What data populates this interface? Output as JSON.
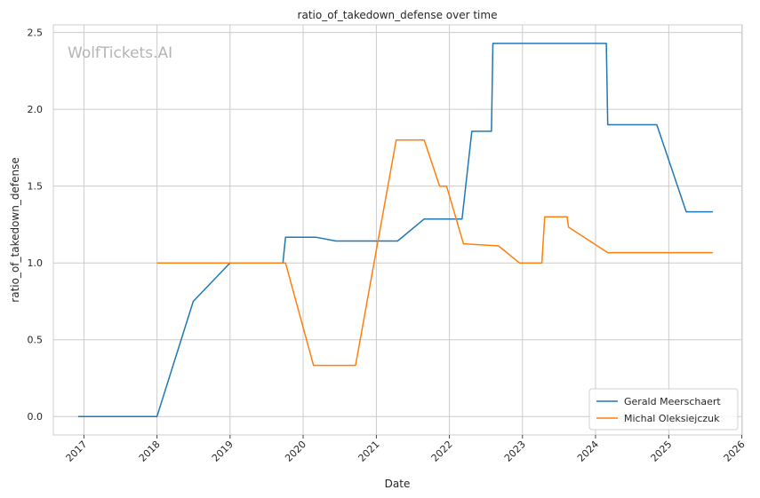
{
  "chart_data": {
    "type": "line",
    "title": "ratio_of_takedown_defense over time",
    "xlabel": "Date",
    "ylabel": "ratio_of_takedown_defense",
    "watermark": "WolfTickets.AI",
    "xlim": [
      "2016-08-01",
      "2026-01-03"
    ],
    "ylim": [
      -0.12,
      2.55
    ],
    "x_ticks": [
      {
        "date": "2017-01-01",
        "label": "2017"
      },
      {
        "date": "2018-01-01",
        "label": "2018"
      },
      {
        "date": "2019-01-01",
        "label": "2019"
      },
      {
        "date": "2020-01-01",
        "label": "2020"
      },
      {
        "date": "2021-01-01",
        "label": "2021"
      },
      {
        "date": "2022-01-01",
        "label": "2022"
      },
      {
        "date": "2023-01-01",
        "label": "2023"
      },
      {
        "date": "2024-01-01",
        "label": "2024"
      },
      {
        "date": "2025-01-01",
        "label": "2025"
      },
      {
        "date": "2026-01-01",
        "label": "2026"
      }
    ],
    "y_ticks": [
      {
        "value": 0.0,
        "label": "0.0"
      },
      {
        "value": 0.5,
        "label": "0.5"
      },
      {
        "value": 1.0,
        "label": "1.0"
      },
      {
        "value": 1.5,
        "label": "1.5"
      },
      {
        "value": 2.0,
        "label": "2.0"
      },
      {
        "value": 2.5,
        "label": "2.5"
      }
    ],
    "grid": true,
    "legend_position": "bottom-right",
    "series": [
      {
        "name": "Gerald Meerschaert",
        "color": "#1f77b4",
        "points": [
          [
            "2016-12-03",
            0.0
          ],
          [
            "2018-01-01",
            0.0
          ],
          [
            "2018-07-01",
            0.75
          ],
          [
            "2019-01-01",
            1.0
          ],
          [
            "2019-09-22",
            1.0
          ],
          [
            "2019-10-05",
            1.167
          ],
          [
            "2020-03-07",
            1.167
          ],
          [
            "2020-06-13",
            1.143
          ],
          [
            "2021-04-17",
            1.143
          ],
          [
            "2021-08-28",
            1.286
          ],
          [
            "2022-03-05",
            1.286
          ],
          [
            "2022-04-23",
            1.857
          ],
          [
            "2022-07-30",
            1.857
          ],
          [
            "2022-08-06",
            2.429
          ],
          [
            "2024-02-24",
            2.429
          ],
          [
            "2024-03-02",
            1.9
          ],
          [
            "2024-11-02",
            1.9
          ],
          [
            "2025-03-29",
            1.333
          ],
          [
            "2025-08-09",
            1.333
          ]
        ]
      },
      {
        "name": "Michal Oleksiejczuk",
        "color": "#ff7f0e",
        "points": [
          [
            "2018-01-01",
            1.0
          ],
          [
            "2019-10-05",
            1.0
          ],
          [
            "2020-02-22",
            0.333
          ],
          [
            "2020-09-19",
            0.333
          ],
          [
            "2021-04-10",
            1.8
          ],
          [
            "2021-08-28",
            1.8
          ],
          [
            "2021-11-13",
            1.5
          ],
          [
            "2021-12-18",
            1.5
          ],
          [
            "2022-03-12",
            1.125
          ],
          [
            "2022-09-03",
            1.111
          ],
          [
            "2022-12-17",
            1.0
          ],
          [
            "2023-04-08",
            1.0
          ],
          [
            "2023-04-22",
            1.3
          ],
          [
            "2023-08-12",
            1.3
          ],
          [
            "2023-08-19",
            1.233
          ],
          [
            "2024-03-02",
            1.067
          ],
          [
            "2025-08-09",
            1.067
          ]
        ]
      }
    ]
  }
}
